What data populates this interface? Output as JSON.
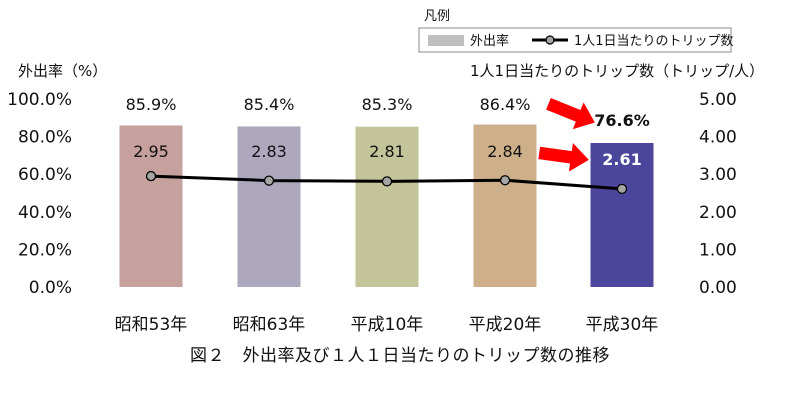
{
  "chart_data": {
    "type": "bar",
    "categories": [
      "昭和53年",
      "昭和63年",
      "平成10年",
      "平成20年",
      "平成30年"
    ],
    "series": [
      {
        "name": "外出率",
        "kind": "bar",
        "axis": "left",
        "values": [
          85.9,
          85.4,
          85.3,
          86.4,
          76.6
        ],
        "labels": [
          "85.9%",
          "85.4%",
          "85.3%",
          "86.4%",
          "76.6%"
        ],
        "colors": [
          "#c6a09d",
          "#aea8bf",
          "#c3c49a",
          "#cdb089",
          "#4b469b"
        ]
      },
      {
        "name": "1人1日当たりのトリップ数",
        "kind": "line",
        "axis": "right",
        "values": [
          2.95,
          2.83,
          2.81,
          2.84,
          2.61
        ],
        "labels": [
          "2.95",
          "2.83",
          "2.81",
          "2.84",
          "2.61"
        ]
      }
    ],
    "y_left": {
      "title": "外出率（%）",
      "range": [
        0,
        100
      ],
      "ticks": [
        "0.0%",
        "20.0%",
        "40.0%",
        "60.0%",
        "80.0%",
        "100.0%"
      ]
    },
    "y_right": {
      "title": "1人1日当たりのトリップ数（トリップ/人）",
      "range": [
        0,
        5
      ],
      "ticks": [
        "0.00",
        "1.00",
        "2.00",
        "3.00",
        "4.00",
        "5.00"
      ]
    },
    "legend": {
      "title": "凡例",
      "placement": "top-right",
      "items": [
        "外出率",
        "1人1日当たりのトリップ数"
      ]
    },
    "highlight_color": "#ff0000",
    "caption": "図２　外出率及び１人１日当たりのトリップ数の推移",
    "grid": false
  }
}
